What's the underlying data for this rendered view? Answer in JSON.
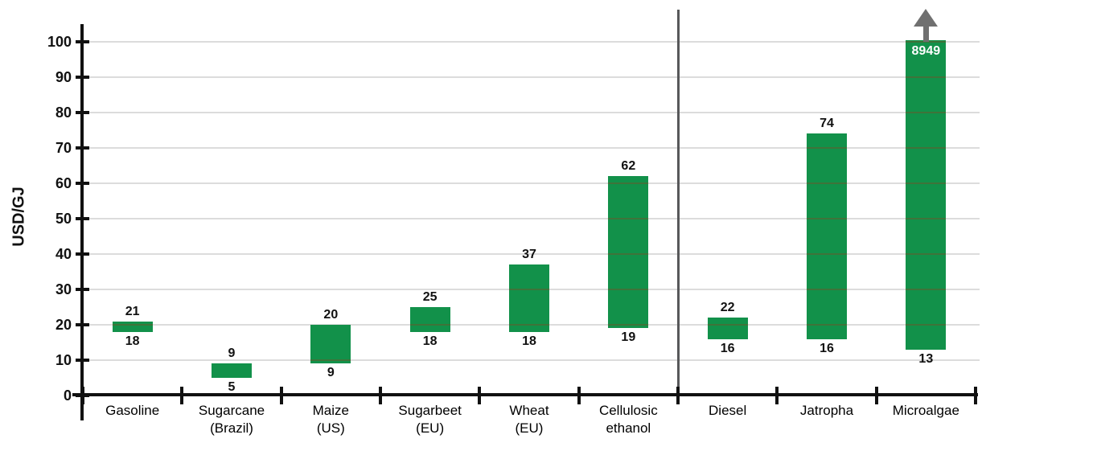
{
  "chart_data": {
    "type": "bar",
    "subtype": "floating-range-bars",
    "title": "",
    "xlabel": "",
    "ylabel": "USD/GJ",
    "ylim": [
      0,
      100
    ],
    "ytick_step": 10,
    "ytick_labels": [
      "0",
      "10",
      "20",
      "30",
      "40",
      "50",
      "60",
      "70",
      "80",
      "90",
      "100"
    ],
    "grid": true,
    "legend": false,
    "bar_color": "#12914A",
    "divider_after_index": 5,
    "categories": [
      "Gasoline",
      "Sugarcane (Brazil)",
      "Maize (US)",
      "Sugarbeet (EU)",
      "Wheat (EU)",
      "Cellulosic ethanol",
      "Diesel",
      "Jatropha",
      "Microalgae"
    ],
    "series": [
      {
        "name": "min",
        "values": [
          18,
          5,
          9,
          18,
          18,
          19,
          16,
          16,
          13
        ]
      },
      {
        "name": "max",
        "values": [
          21,
          9,
          20,
          25,
          37,
          62,
          22,
          74,
          8949
        ]
      }
    ],
    "bars": [
      {
        "label_lines": [
          "Gasoline"
        ],
        "min": 18,
        "max": 21,
        "min_label": "18",
        "max_label": "21",
        "clipped": false
      },
      {
        "label_lines": [
          "Sugarcane",
          "(Brazil)"
        ],
        "min": 5,
        "max": 9,
        "min_label": "5",
        "max_label": "9",
        "clipped": false
      },
      {
        "label_lines": [
          "Maize",
          "(US)"
        ],
        "min": 9,
        "max": 20,
        "min_label": "9",
        "max_label": "20",
        "clipped": false
      },
      {
        "label_lines": [
          "Sugarbeet",
          "(EU)"
        ],
        "min": 18,
        "max": 25,
        "min_label": "18",
        "max_label": "25",
        "clipped": false
      },
      {
        "label_lines": [
          "Wheat",
          "(EU)"
        ],
        "min": 18,
        "max": 37,
        "min_label": "18",
        "max_label": "37",
        "clipped": false
      },
      {
        "label_lines": [
          "Cellulosic",
          "ethanol"
        ],
        "min": 19,
        "max": 62,
        "min_label": "19",
        "max_label": "62",
        "clipped": false
      },
      {
        "label_lines": [
          "Diesel"
        ],
        "min": 16,
        "max": 22,
        "min_label": "16",
        "max_label": "22",
        "clipped": false
      },
      {
        "label_lines": [
          "Jatropha"
        ],
        "min": 16,
        "max": 74,
        "min_label": "16",
        "max_label": "74",
        "clipped": false
      },
      {
        "label_lines": [
          "Microalgae"
        ],
        "min": 13,
        "max": 8949,
        "min_label": "13",
        "max_label": "8949",
        "clipped": true
      }
    ],
    "overflow_marker": {
      "category": "Microalgae",
      "type": "up-arrow",
      "label_inside_bar": "8949"
    }
  }
}
